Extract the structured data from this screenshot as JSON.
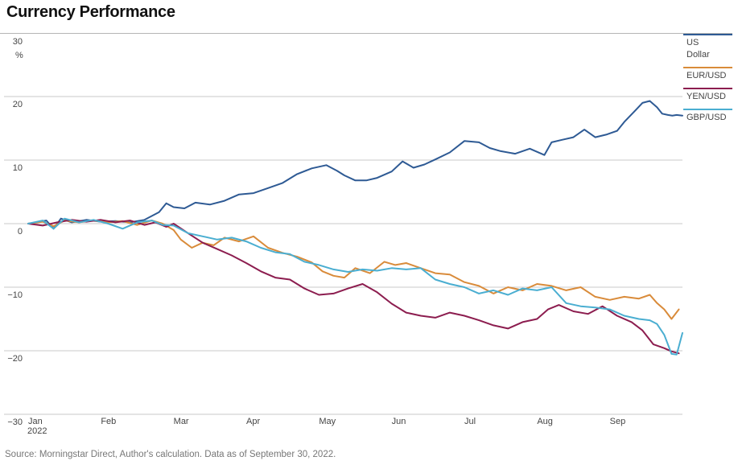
{
  "title": "Currency Performance",
  "source": "Source: Morningstar Direct, Author's calculation. Data as of September 30, 2022.",
  "chart_data": {
    "type": "line",
    "title": "Currency Performance",
    "ylabel": "%",
    "ylim": [
      -30,
      30
    ],
    "yticks": [
      30,
      20,
      10,
      0,
      -10,
      -20,
      -30
    ],
    "ytick_labels": [
      "30",
      "20",
      "10",
      "0",
      "−10",
      "−20",
      "−30"
    ],
    "xlim": [
      0,
      9
    ],
    "x_unit": "months elapsed since January 1, 2022",
    "xtick_labels": [
      "Jan",
      "Feb",
      "Mar",
      "Apr",
      "May",
      "Jun",
      "Jul",
      "Aug",
      "Sep"
    ],
    "xtick_sublabel": "2022",
    "grid": true,
    "legend_position": "right",
    "series": [
      {
        "name": "US Dollar",
        "color": "#2e5a94",
        "x": [
          0.0,
          0.25,
          0.35,
          0.45,
          0.6,
          0.8,
          1.0,
          1.2,
          1.4,
          1.6,
          1.8,
          1.9,
          2.0,
          2.15,
          2.3,
          2.5,
          2.7,
          2.9,
          3.1,
          3.3,
          3.5,
          3.7,
          3.9,
          4.1,
          4.25,
          4.35,
          4.5,
          4.65,
          4.8,
          5.0,
          5.15,
          5.3,
          5.45,
          5.6,
          5.8,
          6.0,
          6.2,
          6.35,
          6.5,
          6.7,
          6.9,
          7.1,
          7.2,
          7.35,
          7.5,
          7.65,
          7.8,
          7.95,
          8.1,
          8.2,
          8.35,
          8.45,
          8.55,
          8.65,
          8.72,
          8.8,
          8.86,
          8.92,
          9.0
        ],
        "values": [
          0.0,
          0.5,
          -0.8,
          0.8,
          0.2,
          0.6,
          0.3,
          0.4,
          0.2,
          0.6,
          1.8,
          3.2,
          2.6,
          2.4,
          3.3,
          3.0,
          3.6,
          4.6,
          4.8,
          5.6,
          6.4,
          7.8,
          8.7,
          9.2,
          8.3,
          7.6,
          6.8,
          6.8,
          7.2,
          8.2,
          9.8,
          8.8,
          9.3,
          10.1,
          11.2,
          13.0,
          12.8,
          11.9,
          11.4,
          11.0,
          11.8,
          10.8,
          12.8,
          13.2,
          13.6,
          14.8,
          13.6,
          14.0,
          14.6,
          16.0,
          17.8,
          19.0,
          19.3,
          18.3,
          17.3,
          17.1,
          17.0,
          17.1,
          17.0
        ]
      },
      {
        "name": "EUR/USD",
        "color": "#d98b3a",
        "x": [
          0.0,
          0.2,
          0.35,
          0.5,
          0.7,
          0.9,
          1.1,
          1.3,
          1.5,
          1.7,
          1.85,
          2.0,
          2.1,
          2.25,
          2.4,
          2.55,
          2.7,
          2.9,
          3.1,
          3.3,
          3.5,
          3.7,
          3.9,
          4.05,
          4.2,
          4.35,
          4.5,
          4.7,
          4.9,
          5.05,
          5.2,
          5.4,
          5.6,
          5.8,
          6.0,
          6.2,
          6.4,
          6.6,
          6.8,
          7.0,
          7.2,
          7.4,
          7.6,
          7.8,
          8.0,
          8.2,
          8.4,
          8.55,
          8.65,
          8.75,
          8.85,
          8.95
        ],
        "values": [
          0.0,
          0.3,
          -0.4,
          0.5,
          0.2,
          0.5,
          0.2,
          0.4,
          -0.2,
          0.5,
          0.0,
          -1.0,
          -2.5,
          -3.8,
          -3.0,
          -3.4,
          -2.2,
          -2.8,
          -2.0,
          -3.8,
          -4.6,
          -5.2,
          -6.1,
          -7.5,
          -8.2,
          -8.5,
          -7.0,
          -7.8,
          -6.0,
          -6.5,
          -6.2,
          -7.0,
          -7.8,
          -8.0,
          -9.2,
          -9.8,
          -11.0,
          -10.0,
          -10.5,
          -9.5,
          -9.8,
          -10.5,
          -10.0,
          -11.5,
          -12.0,
          -11.5,
          -11.8,
          -11.2,
          -12.5,
          -13.5,
          -15.0,
          -13.5
        ]
      },
      {
        "name": "YEN/USD",
        "color": "#8c1d4f",
        "x": [
          0.0,
          0.2,
          0.4,
          0.6,
          0.8,
          1.0,
          1.2,
          1.4,
          1.6,
          1.75,
          1.9,
          2.0,
          2.2,
          2.4,
          2.6,
          2.8,
          3.0,
          3.2,
          3.4,
          3.6,
          3.8,
          4.0,
          4.2,
          4.4,
          4.6,
          4.8,
          5.0,
          5.2,
          5.4,
          5.6,
          5.8,
          6.0,
          6.2,
          6.4,
          6.6,
          6.8,
          7.0,
          7.15,
          7.3,
          7.5,
          7.7,
          7.9,
          8.1,
          8.3,
          8.45,
          8.6,
          8.75,
          8.85,
          8.95
        ],
        "values": [
          0.0,
          -0.3,
          0.2,
          0.6,
          0.3,
          0.6,
          0.2,
          0.5,
          -0.2,
          0.2,
          -0.5,
          0.0,
          -1.5,
          -3.0,
          -4.0,
          -5.0,
          -6.2,
          -7.5,
          -8.5,
          -8.8,
          -10.2,
          -11.2,
          -11.0,
          -10.2,
          -9.5,
          -10.8,
          -12.6,
          -14.0,
          -14.5,
          -14.8,
          -14.0,
          -14.5,
          -15.2,
          -16.0,
          -16.5,
          -15.5,
          -15.0,
          -13.5,
          -12.8,
          -13.8,
          -14.2,
          -13.0,
          -14.5,
          -15.5,
          -16.8,
          -19.0,
          -19.6,
          -20.1,
          -20.4
        ]
      },
      {
        "name": "GBP/USD",
        "color": "#4aaed1",
        "x": [
          0.0,
          0.2,
          0.35,
          0.5,
          0.7,
          0.9,
          1.1,
          1.3,
          1.5,
          1.7,
          1.85,
          2.0,
          2.2,
          2.4,
          2.6,
          2.8,
          3.0,
          3.2,
          3.4,
          3.6,
          3.8,
          4.0,
          4.2,
          4.4,
          4.6,
          4.8,
          5.0,
          5.2,
          5.4,
          5.6,
          5.8,
          6.0,
          6.2,
          6.4,
          6.6,
          6.8,
          7.0,
          7.2,
          7.4,
          7.6,
          7.8,
          8.0,
          8.2,
          8.4,
          8.55,
          8.65,
          8.75,
          8.85,
          8.92,
          9.0
        ],
        "values": [
          0.0,
          0.5,
          -0.8,
          0.8,
          0.2,
          0.6,
          0.0,
          -0.8,
          0.2,
          0.5,
          -0.2,
          -0.3,
          -1.5,
          -2.0,
          -2.5,
          -2.2,
          -2.8,
          -3.8,
          -4.5,
          -4.8,
          -6.0,
          -6.5,
          -7.2,
          -7.6,
          -7.2,
          -7.4,
          -7.0,
          -7.2,
          -7.0,
          -8.8,
          -9.5,
          -10.0,
          -11.0,
          -10.5,
          -11.2,
          -10.2,
          -10.5,
          -10.0,
          -12.5,
          -13.0,
          -13.2,
          -13.5,
          -14.5,
          -15.0,
          -15.2,
          -15.8,
          -17.5,
          -20.5,
          -20.6,
          -17.2
        ]
      }
    ]
  }
}
